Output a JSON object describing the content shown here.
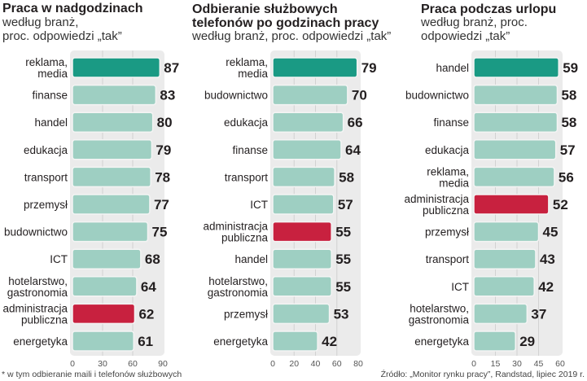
{
  "colors": {
    "bar_default": "#9ecfc2",
    "bar_highlight_top": "#1a9a84",
    "bar_public_admin": "#c8213f",
    "plot_background": "#ebebeb",
    "gridline": "#d2d2d2",
    "bar_border": "#f4f4f4"
  },
  "footnote_left": "* w tym odbieranie maili i telefonów służbowych",
  "footnote_right": "Źródło: „Monitor rynku pracy”, Randstad, lipiec 2019 r.",
  "chart_data": [
    {
      "type": "bar",
      "orientation": "horizontal",
      "title": "Praca w nadgodzinach",
      "subtitle_lines": [
        "według branż,",
        "proc. odpowiedzi „tak”"
      ],
      "categories": [
        [
          "reklama,",
          "media"
        ],
        [
          "finanse"
        ],
        [
          "handel"
        ],
        [
          "edukacja"
        ],
        [
          "transport"
        ],
        [
          "przemysł"
        ],
        [
          "budownictwo"
        ],
        [
          "ICT"
        ],
        [
          "hotelarstwo,",
          "gastronomia"
        ],
        [
          "administracja",
          "publiczna"
        ],
        [
          "energetyka"
        ]
      ],
      "values": [
        87,
        83,
        80,
        79,
        78,
        77,
        75,
        68,
        64,
        62,
        61
      ],
      "highlight": [
        "top",
        "",
        "",
        "",
        "",
        "",
        "",
        "",
        "",
        "admin",
        ""
      ],
      "xlim": [
        0,
        90
      ],
      "xticks": [
        0,
        30,
        60,
        90
      ],
      "grid": true,
      "unit": "%"
    },
    {
      "type": "bar",
      "orientation": "horizontal",
      "title": "Odbieranie służbowych telefonów po godzinach pracy",
      "title_lines": [
        "Odbieranie służbowych",
        "telefonów po godzinach pracy"
      ],
      "subtitle_lines": [
        "według branż, proc. odpowiedzi „tak”"
      ],
      "categories": [
        [
          "reklama,",
          "media"
        ],
        [
          "budownictwo"
        ],
        [
          "edukacja"
        ],
        [
          "finanse"
        ],
        [
          "transport"
        ],
        [
          "ICT"
        ],
        [
          "administracja",
          "publiczna"
        ],
        [
          "handel"
        ],
        [
          "hotelarstwo,",
          "gastronomia"
        ],
        [
          "przemysł"
        ],
        [
          "energetyka"
        ]
      ],
      "values": [
        79,
        70,
        66,
        64,
        58,
        57,
        55,
        55,
        55,
        53,
        42
      ],
      "highlight": [
        "top",
        "",
        "",
        "",
        "",
        "",
        "admin",
        "",
        "",
        "",
        ""
      ],
      "xlim": [
        0,
        80
      ],
      "xticks": [
        0,
        20,
        40,
        60,
        80
      ],
      "grid": true,
      "unit": "%"
    },
    {
      "type": "bar",
      "orientation": "horizontal",
      "title": "Praca podczas urlopu",
      "subtitle_lines": [
        "według branż, proc.",
        "odpowiedzi „tak”"
      ],
      "categories": [
        [
          "handel"
        ],
        [
          "budownictwo"
        ],
        [
          "finanse"
        ],
        [
          "edukacja"
        ],
        [
          "reklama,",
          "media"
        ],
        [
          "administracja",
          "publiczna"
        ],
        [
          "przemysł"
        ],
        [
          "transport"
        ],
        [
          "ICT"
        ],
        [
          "hotelarstwo,",
          "gastronomia"
        ],
        [
          "energetyka"
        ]
      ],
      "values": [
        59,
        58,
        58,
        57,
        56,
        52,
        45,
        43,
        42,
        37,
        29
      ],
      "highlight": [
        "top",
        "",
        "",
        "",
        "",
        "admin",
        "",
        "",
        "",
        "",
        ""
      ],
      "xlim": [
        0,
        60
      ],
      "xticks": [
        0,
        15,
        30,
        45,
        60
      ],
      "grid": true,
      "unit": "%"
    }
  ]
}
